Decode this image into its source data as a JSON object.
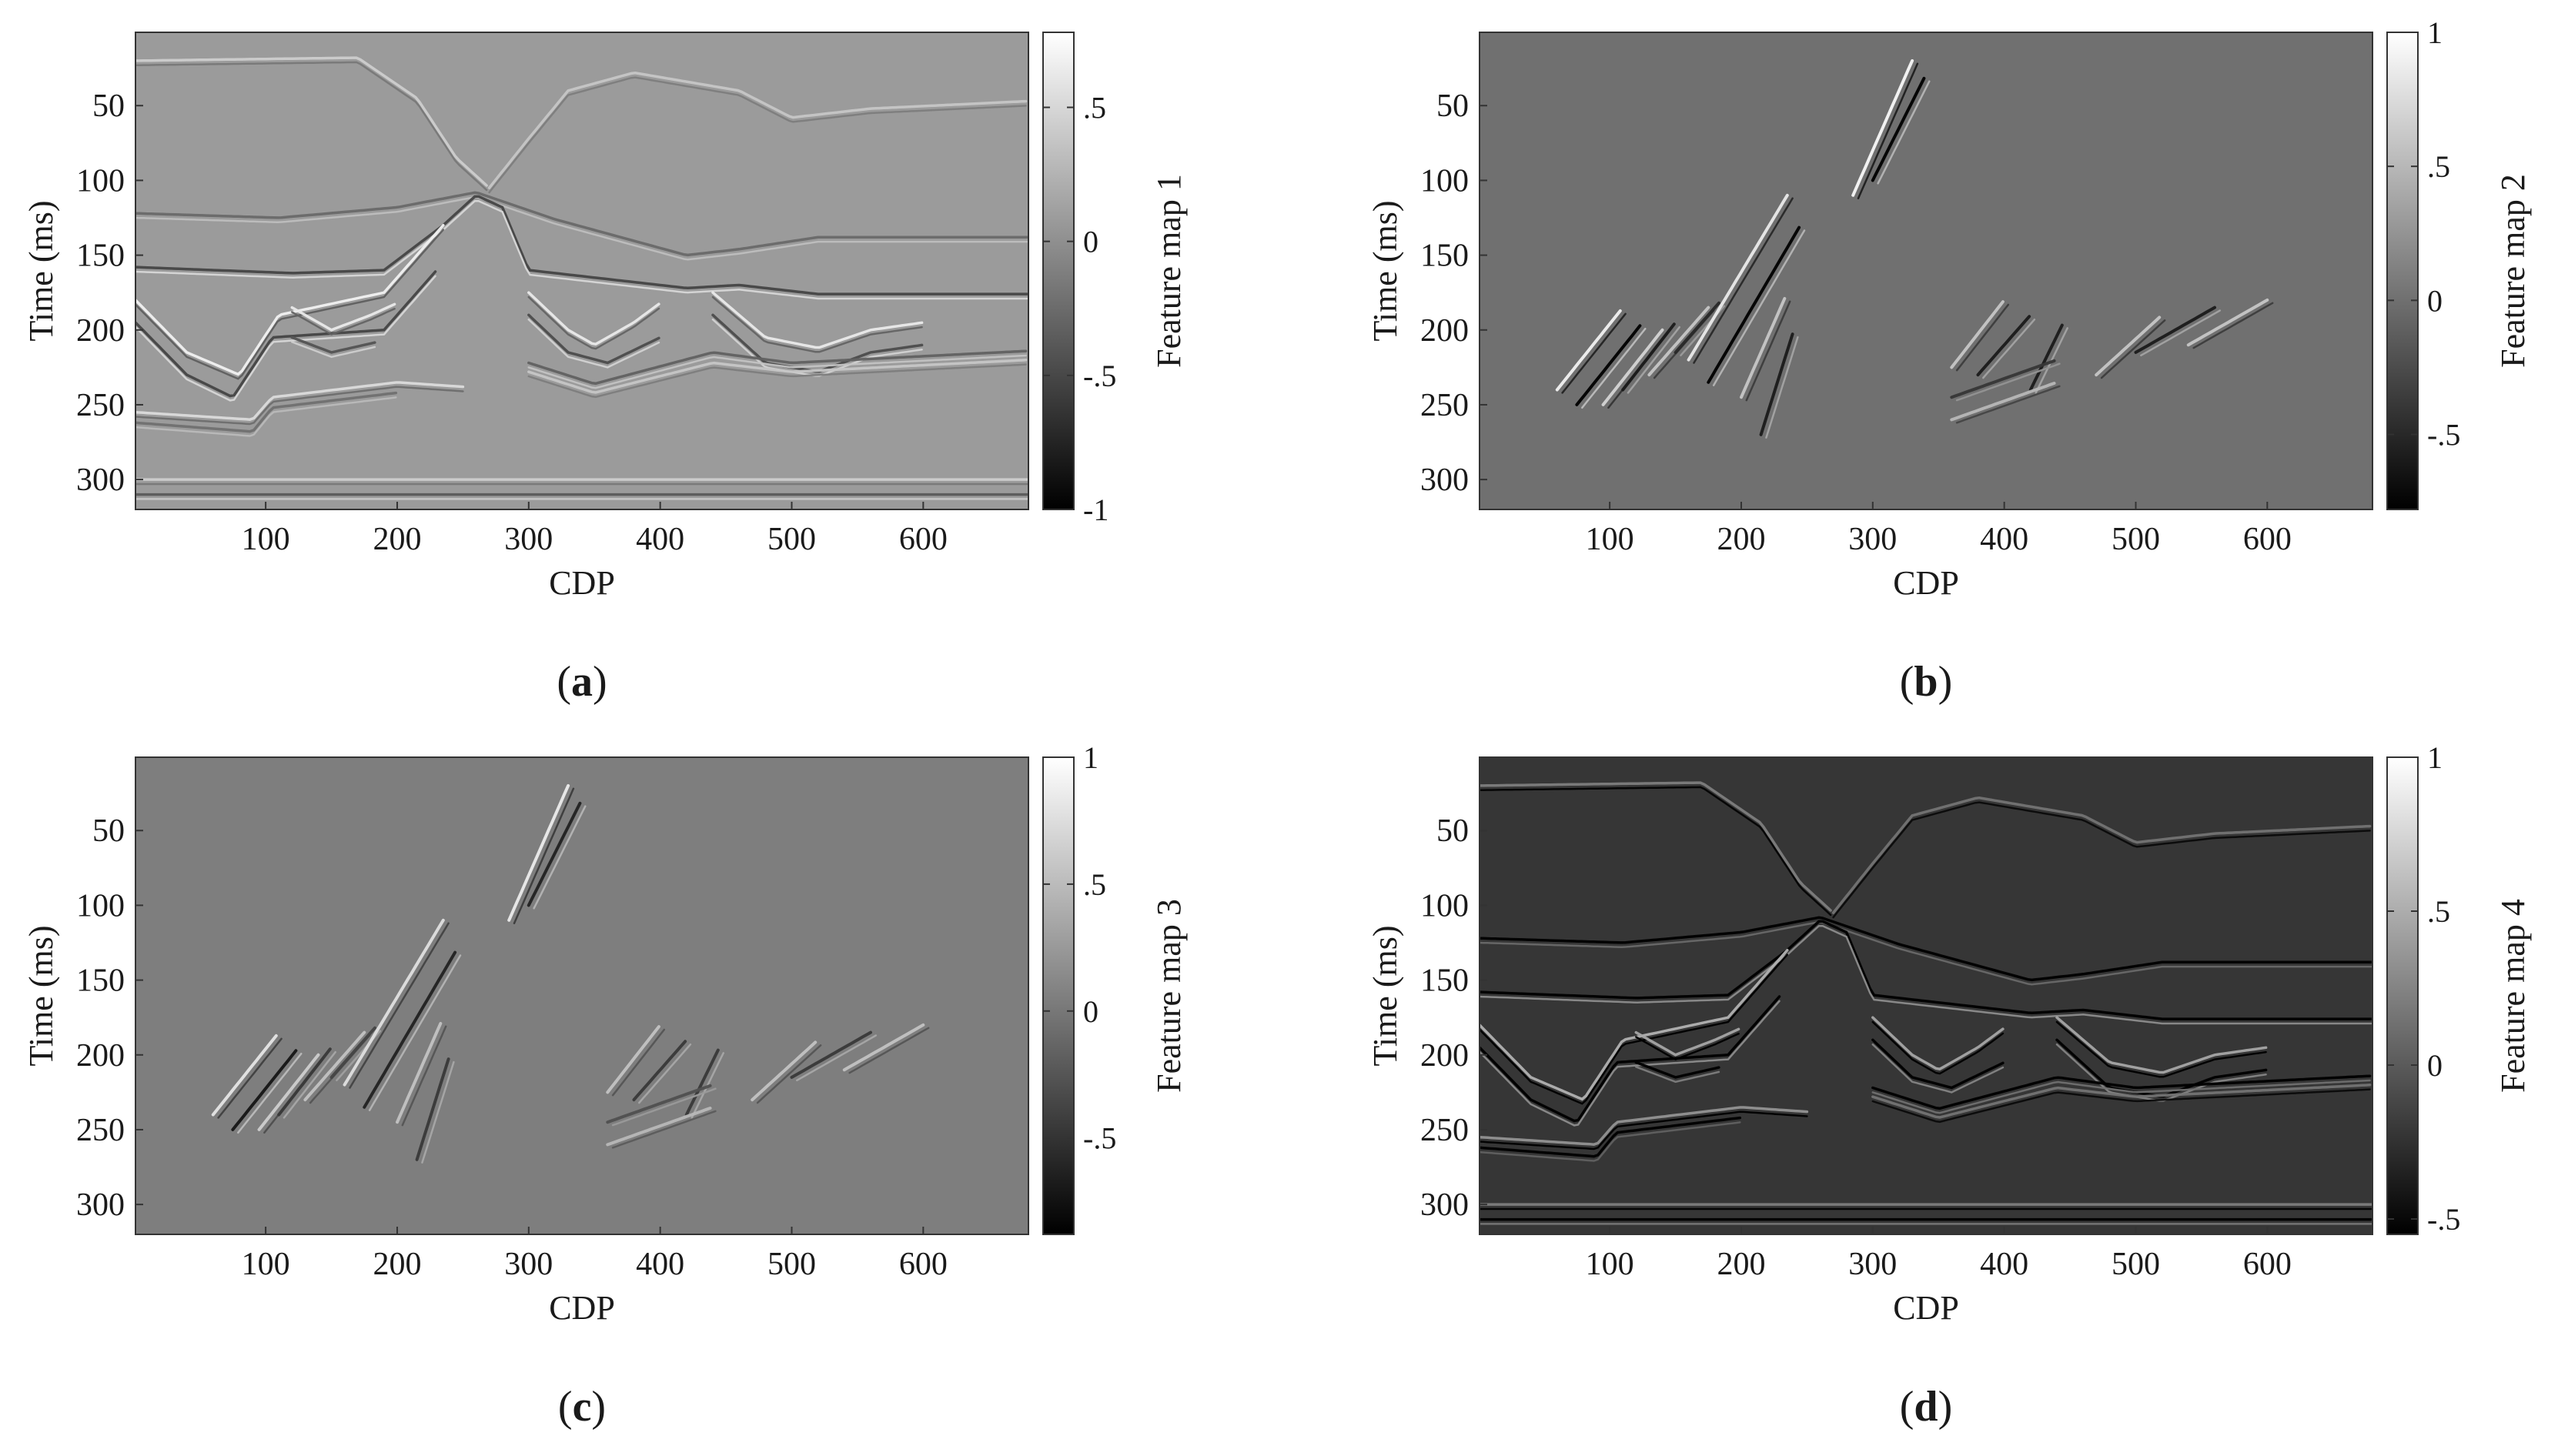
{
  "figure": {
    "panels": [
      {
        "id": "a",
        "caption": "(a)",
        "cbar_label": "Feature map 1",
        "cbar_ticks": [
          0.5,
          0,
          -0.5,
          -1
        ],
        "cbar_range": [
          -1,
          0.78
        ],
        "background_level": 0.08,
        "style": "a"
      },
      {
        "id": "b",
        "caption": "(b)",
        "cbar_label": "Feature map 2",
        "cbar_ticks": [
          1,
          0.5,
          0,
          -0.5
        ],
        "cbar_range": [
          -0.78,
          1
        ],
        "background_level": 0.0,
        "style": "b"
      },
      {
        "id": "c",
        "caption": "(c)",
        "cbar_label": "Feature map 3",
        "cbar_ticks": [
          1,
          0.5,
          0,
          -0.5
        ],
        "cbar_range": [
          -0.88,
          1
        ],
        "background_level": 0.05,
        "style": "c"
      },
      {
        "id": "d",
        "caption": "(d)",
        "cbar_label": "Feature map 4",
        "cbar_ticks": [
          1,
          0.5,
          0,
          -0.5
        ],
        "cbar_range": [
          -0.55,
          1
        ],
        "background_level": -0.22,
        "style": "d"
      }
    ]
  },
  "chart_data": [
    {
      "type": "heatmap",
      "xlabel": "CDP",
      "ylabel": "Time (ms)",
      "xticks": [
        100,
        200,
        300,
        400,
        500,
        600
      ],
      "yticks": [
        50,
        100,
        150,
        200,
        250,
        300
      ],
      "xlim": [
        1,
        680
      ],
      "ylim": [
        320,
        1
      ],
      "colorbar_label": "Feature map 1",
      "colorbar_ticks": [
        0.5,
        0,
        -0.5,
        -1
      ],
      "colormap": "gray"
    },
    {
      "type": "heatmap",
      "xlabel": "CDP",
      "ylabel": "Time (ms)",
      "xticks": [
        100,
        200,
        300,
        400,
        500,
        600
      ],
      "yticks": [
        50,
        100,
        150,
        200,
        250,
        300
      ],
      "xlim": [
        1,
        680
      ],
      "ylim": [
        320,
        1
      ],
      "colorbar_label": "Feature map 2",
      "colorbar_ticks": [
        1,
        0.5,
        0,
        -0.5
      ],
      "colormap": "gray"
    },
    {
      "type": "heatmap",
      "xlabel": "CDP",
      "ylabel": "Time (ms)",
      "xticks": [
        100,
        200,
        300,
        400,
        500,
        600
      ],
      "yticks": [
        50,
        100,
        150,
        200,
        250,
        300
      ],
      "xlim": [
        1,
        680
      ],
      "ylim": [
        320,
        1
      ],
      "colorbar_label": "Feature map 3",
      "colorbar_ticks": [
        1,
        0.5,
        0,
        -0.5
      ],
      "colormap": "gray"
    },
    {
      "type": "heatmap",
      "xlabel": "CDP",
      "ylabel": "Time (ms)",
      "xticks": [
        100,
        200,
        300,
        400,
        500,
        600
      ],
      "yticks": [
        50,
        100,
        150,
        200,
        250,
        300
      ],
      "xlim": [
        1,
        680
      ],
      "ylim": [
        320,
        1
      ],
      "colorbar_label": "Feature map 4",
      "colorbar_ticks": [
        1,
        0.5,
        0,
        -0.5
      ],
      "colormap": "gray"
    }
  ]
}
